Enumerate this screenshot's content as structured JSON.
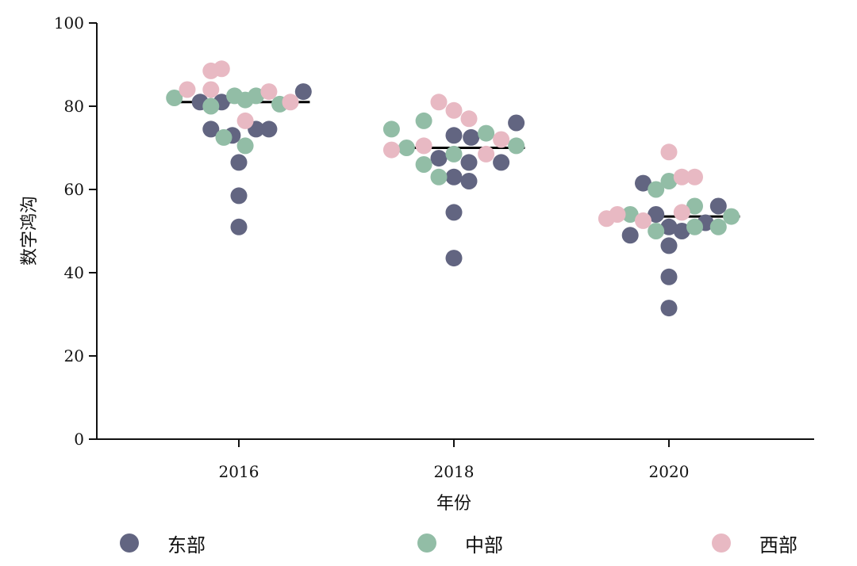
{
  "chart_data": {
    "type": "scatter",
    "subtype": "beeswarm",
    "xlabel": "年份",
    "ylabel": "数字鸿沟",
    "categories": [
      "2016",
      "2018",
      "2020"
    ],
    "ylim": [
      0,
      100
    ],
    "yticks": [
      0,
      20,
      40,
      60,
      80,
      100
    ],
    "grid": false,
    "legend_position": "bottom",
    "means": [
      81,
      70,
      53.5
    ],
    "series": [
      {
        "name": "东部",
        "color": "#626581",
        "points": [
          {
            "x": "2016",
            "offset": -0.18,
            "y": 81
          },
          {
            "x": "2016",
            "offset": -0.08,
            "y": 81
          },
          {
            "x": "2016",
            "offset": 0.3,
            "y": 83.5
          },
          {
            "x": "2016",
            "offset": -0.13,
            "y": 74.5
          },
          {
            "x": "2016",
            "offset": -0.03,
            "y": 73
          },
          {
            "x": "2016",
            "offset": 0.08,
            "y": 74.5
          },
          {
            "x": "2016",
            "offset": 0.14,
            "y": 74.5
          },
          {
            "x": "2016",
            "offset": 0.0,
            "y": 66.5
          },
          {
            "x": "2016",
            "offset": 0.0,
            "y": 58.5
          },
          {
            "x": "2016",
            "offset": 0.0,
            "y": 51
          },
          {
            "x": "2018",
            "offset": 0.0,
            "y": 73
          },
          {
            "x": "2018",
            "offset": 0.08,
            "y": 72.5
          },
          {
            "x": "2018",
            "offset": 0.29,
            "y": 76
          },
          {
            "x": "2018",
            "offset": -0.07,
            "y": 67.5
          },
          {
            "x": "2018",
            "offset": 0.07,
            "y": 66.5
          },
          {
            "x": "2018",
            "offset": 0.22,
            "y": 66.5
          },
          {
            "x": "2018",
            "offset": 0.0,
            "y": 63
          },
          {
            "x": "2018",
            "offset": 0.07,
            "y": 62
          },
          {
            "x": "2018",
            "offset": 0.0,
            "y": 54.5
          },
          {
            "x": "2018",
            "offset": 0.0,
            "y": 43.5
          },
          {
            "x": "2020",
            "offset": -0.12,
            "y": 61.5
          },
          {
            "x": "2020",
            "offset": -0.06,
            "y": 54
          },
          {
            "x": "2020",
            "offset": 0.23,
            "y": 56
          },
          {
            "x": "2020",
            "offset": 0.17,
            "y": 52
          },
          {
            "x": "2020",
            "offset": -0.18,
            "y": 49
          },
          {
            "x": "2020",
            "offset": 0.0,
            "y": 51
          },
          {
            "x": "2020",
            "offset": 0.06,
            "y": 50
          },
          {
            "x": "2020",
            "offset": 0.0,
            "y": 46.5
          },
          {
            "x": "2020",
            "offset": 0.0,
            "y": 39
          },
          {
            "x": "2020",
            "offset": 0.0,
            "y": 31.5
          }
        ]
      },
      {
        "name": "中部",
        "color": "#92bda6",
        "points": [
          {
            "x": "2016",
            "offset": -0.3,
            "y": 82
          },
          {
            "x": "2016",
            "offset": -0.13,
            "y": 80
          },
          {
            "x": "2016",
            "offset": -0.02,
            "y": 82.5
          },
          {
            "x": "2016",
            "offset": 0.03,
            "y": 81.5
          },
          {
            "x": "2016",
            "offset": 0.08,
            "y": 82.5
          },
          {
            "x": "2016",
            "offset": 0.19,
            "y": 80.5
          },
          {
            "x": "2016",
            "offset": -0.07,
            "y": 72.5
          },
          {
            "x": "2016",
            "offset": 0.03,
            "y": 70.5
          },
          {
            "x": "2018",
            "offset": -0.29,
            "y": 74.5
          },
          {
            "x": "2018",
            "offset": -0.14,
            "y": 76.5
          },
          {
            "x": "2018",
            "offset": -0.22,
            "y": 70
          },
          {
            "x": "2018",
            "offset": 0.15,
            "y": 73.5
          },
          {
            "x": "2018",
            "offset": 0.29,
            "y": 70.5
          },
          {
            "x": "2018",
            "offset": 0.0,
            "y": 68.5
          },
          {
            "x": "2018",
            "offset": -0.14,
            "y": 66
          },
          {
            "x": "2018",
            "offset": -0.07,
            "y": 63
          },
          {
            "x": "2020",
            "offset": -0.18,
            "y": 54
          },
          {
            "x": "2020",
            "offset": -0.06,
            "y": 60
          },
          {
            "x": "2020",
            "offset": 0.0,
            "y": 62
          },
          {
            "x": "2020",
            "offset": 0.12,
            "y": 56
          },
          {
            "x": "2020",
            "offset": 0.29,
            "y": 53.5
          },
          {
            "x": "2020",
            "offset": -0.06,
            "y": 50
          },
          {
            "x": "2020",
            "offset": 0.12,
            "y": 51
          },
          {
            "x": "2020",
            "offset": 0.23,
            "y": 51
          }
        ]
      },
      {
        "name": "西部",
        "color": "#e8b9c3",
        "points": [
          {
            "x": "2016",
            "offset": -0.24,
            "y": 84
          },
          {
            "x": "2016",
            "offset": -0.13,
            "y": 88.5
          },
          {
            "x": "2016",
            "offset": -0.08,
            "y": 89
          },
          {
            "x": "2016",
            "offset": -0.13,
            "y": 84
          },
          {
            "x": "2016",
            "offset": 0.14,
            "y": 83.5
          },
          {
            "x": "2016",
            "offset": 0.24,
            "y": 81
          },
          {
            "x": "2016",
            "offset": 0.03,
            "y": 76.5
          },
          {
            "x": "2018",
            "offset": -0.29,
            "y": 69.5
          },
          {
            "x": "2018",
            "offset": -0.14,
            "y": 70.5
          },
          {
            "x": "2018",
            "offset": -0.07,
            "y": 81
          },
          {
            "x": "2018",
            "offset": 0.0,
            "y": 79
          },
          {
            "x": "2018",
            "offset": 0.07,
            "y": 77
          },
          {
            "x": "2018",
            "offset": 0.22,
            "y": 72
          },
          {
            "x": "2018",
            "offset": 0.15,
            "y": 68.5
          },
          {
            "x": "2020",
            "offset": -0.29,
            "y": 53
          },
          {
            "x": "2020",
            "offset": -0.24,
            "y": 54
          },
          {
            "x": "2020",
            "offset": -0.12,
            "y": 52.5
          },
          {
            "x": "2020",
            "offset": 0.0,
            "y": 69
          },
          {
            "x": "2020",
            "offset": 0.06,
            "y": 63
          },
          {
            "x": "2020",
            "offset": 0.12,
            "y": 63
          },
          {
            "x": "2020",
            "offset": 0.06,
            "y": 54.5
          }
        ]
      }
    ]
  },
  "legend": {
    "items": [
      {
        "label": "东部",
        "color": "#626581"
      },
      {
        "label": "中部",
        "color": "#92bda6"
      },
      {
        "label": "西部",
        "color": "#e8b9c3"
      }
    ]
  }
}
